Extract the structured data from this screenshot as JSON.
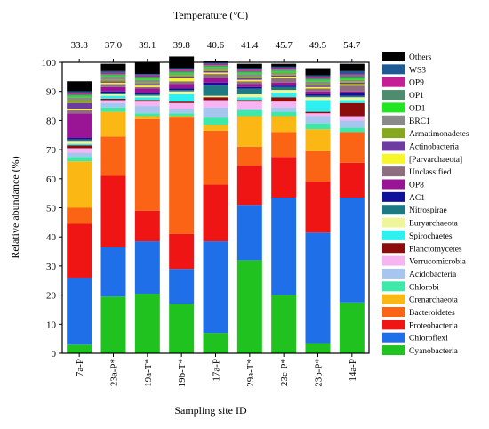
{
  "chart_data": {
    "type": "bar",
    "stacked": true,
    "title": "",
    "xlabel": "Sampling site ID",
    "ylabel": "Relative abundance (%)",
    "top_axis_label": "Temperature (°C)",
    "ylim": [
      0,
      100
    ],
    "yticks": [
      "0",
      "10",
      "20",
      "30",
      "40",
      "50",
      "60",
      "70",
      "80",
      "90",
      "100"
    ],
    "grid": false,
    "legend_position": "right",
    "categories": [
      "7a-P",
      "23a-P*",
      "19a-T*",
      "19b-T*",
      "17a-P",
      "29a-T*",
      "23c-P*",
      "23b-P*",
      "14a-P"
    ],
    "temperatures": [
      "33.8",
      "37.0",
      "39.1",
      "39.8",
      "40.6",
      "41.4",
      "45.7",
      "49.5",
      "54.7"
    ],
    "series": [
      {
        "name": "Cyanobacteria",
        "color": "#1FC21F",
        "values": [
          3,
          19.5,
          20.5,
          17,
          7,
          32,
          20,
          3.5,
          17.5
        ]
      },
      {
        "name": "Chloroflexi",
        "color": "#1F6FE8",
        "values": [
          23,
          17,
          18,
          12,
          31.5,
          19,
          33.5,
          38,
          36
        ]
      },
      {
        "name": "Proteobacteria",
        "color": "#F01515",
        "values": [
          18.5,
          24.5,
          10.5,
          12,
          19.5,
          13.5,
          14,
          17.5,
          12
        ]
      },
      {
        "name": "Bacteroidetes",
        "color": "#FA6414",
        "values": [
          5.5,
          13.5,
          31.5,
          40,
          18.5,
          6.5,
          8.5,
          10.5,
          10.5
        ]
      },
      {
        "name": "Crenarchaeota",
        "color": "#FBB814",
        "values": [
          16,
          8.5,
          1,
          0.5,
          2,
          10.5,
          5.5,
          7.5,
          0
        ]
      },
      {
        "name": "Chlorobi",
        "color": "#3DE8A8",
        "values": [
          1.5,
          1.5,
          1,
          1,
          2.5,
          2,
          1.5,
          2,
          1.5
        ]
      },
      {
        "name": "Acidobacteria",
        "color": "#A6C6F0",
        "values": [
          1.5,
          1.5,
          2.5,
          1.5,
          3.5,
          0.5,
          1.5,
          2.5,
          2.5
        ]
      },
      {
        "name": "Verrucomicrobia",
        "color": "#F6B4F2",
        "values": [
          1.5,
          1,
          1.5,
          2,
          2.5,
          2.5,
          2,
          1,
          1.5
        ]
      },
      {
        "name": "Planctomycetes",
        "color": "#8C0C0C",
        "values": [
          1,
          0.5,
          0.5,
          0.5,
          1,
          0.5,
          1.5,
          0.5,
          4.5
        ]
      },
      {
        "name": "Spirochaetes",
        "color": "#2EF0F0",
        "values": [
          0.5,
          1,
          1,
          2.5,
          0,
          1,
          1.5,
          4,
          1
        ]
      },
      {
        "name": "Euryarchaeota",
        "color": "#EFF59A",
        "values": [
          1,
          0.5,
          0.5,
          1,
          0.5,
          1,
          1,
          1,
          1
        ]
      },
      {
        "name": "Nitrospirae",
        "color": "#1E7A82",
        "values": [
          0.5,
          0.5,
          0.5,
          0.5,
          3.5,
          2,
          1,
          0.5,
          0.5
        ]
      },
      {
        "name": "AC1",
        "color": "#10109A",
        "values": [
          0.5,
          0.5,
          0.5,
          0.5,
          1,
          0.5,
          0.5,
          0.5,
          1
        ]
      },
      {
        "name": "OP8",
        "color": "#9A1496",
        "values": [
          8.5,
          1.5,
          1.5,
          1.5,
          1.5,
          1,
          1,
          1,
          0.5
        ]
      },
      {
        "name": "Unclassified",
        "color": "#8C6E7E",
        "values": [
          1,
          1,
          0.5,
          1,
          1.5,
          1,
          1.5,
          1,
          2
        ]
      },
      {
        "name": "[Parvarchaeota]",
        "color": "#F6F62A",
        "values": [
          0.5,
          0.5,
          0.5,
          1,
          0.5,
          0.5,
          0.5,
          0.5,
          0.5
        ]
      },
      {
        "name": "Actinobacteria",
        "color": "#6E3CA0",
        "values": [
          2,
          0.5,
          0.5,
          0.5,
          0.5,
          0.5,
          0.5,
          0.5,
          0.5
        ]
      },
      {
        "name": "Armatimonadetes",
        "color": "#86A81E",
        "values": [
          1,
          0.5,
          0.5,
          0.5,
          0.5,
          0.5,
          0.5,
          0.5,
          0.5
        ]
      },
      {
        "name": "BRC1",
        "color": "#8A8A8A",
        "values": [
          1,
          1,
          1,
          0.5,
          0.5,
          1,
          0.5,
          1,
          0.5
        ]
      },
      {
        "name": "OD1",
        "color": "#22E622",
        "values": [
          0.5,
          0.5,
          0.5,
          0.5,
          0.5,
          0.5,
          0.5,
          0.5,
          0.5
        ]
      },
      {
        "name": "OP1",
        "color": "#4E8C6E",
        "values": [
          0.5,
          0.5,
          0.5,
          0.5,
          0.5,
          0.5,
          0.5,
          0.5,
          1
        ]
      },
      {
        "name": "OP9",
        "color": "#C61E96",
        "values": [
          0.5,
          0.5,
          0.5,
          0.5,
          0.5,
          0.5,
          0.5,
          0.5,
          0.5
        ]
      },
      {
        "name": "WS3",
        "color": "#1E5A96",
        "values": [
          0.5,
          0.5,
          0.5,
          0.5,
          0.5,
          0.5,
          0.5,
          0.5,
          1
        ]
      },
      {
        "name": "Others",
        "color": "#000000",
        "values": [
          3.5,
          2.5,
          4,
          4,
          0.5,
          1.5,
          1,
          2.5,
          2.5
        ]
      }
    ],
    "legend_order": [
      "Others",
      "WS3",
      "OP9",
      "OP1",
      "OD1",
      "BRC1",
      "Armatimonadetes",
      "Actinobacteria",
      "[Parvarchaeota]",
      "Unclassified",
      "OP8",
      "AC1",
      "Nitrospirae",
      "Euryarchaeota",
      "Spirochaetes",
      "Planctomycetes",
      "Verrucomicrobia",
      "Acidobacteria",
      "Chlorobi",
      "Crenarchaeota",
      "Bacteroidetes",
      "Proteobacteria",
      "Chloroflexi",
      "Cyanobacteria"
    ]
  }
}
